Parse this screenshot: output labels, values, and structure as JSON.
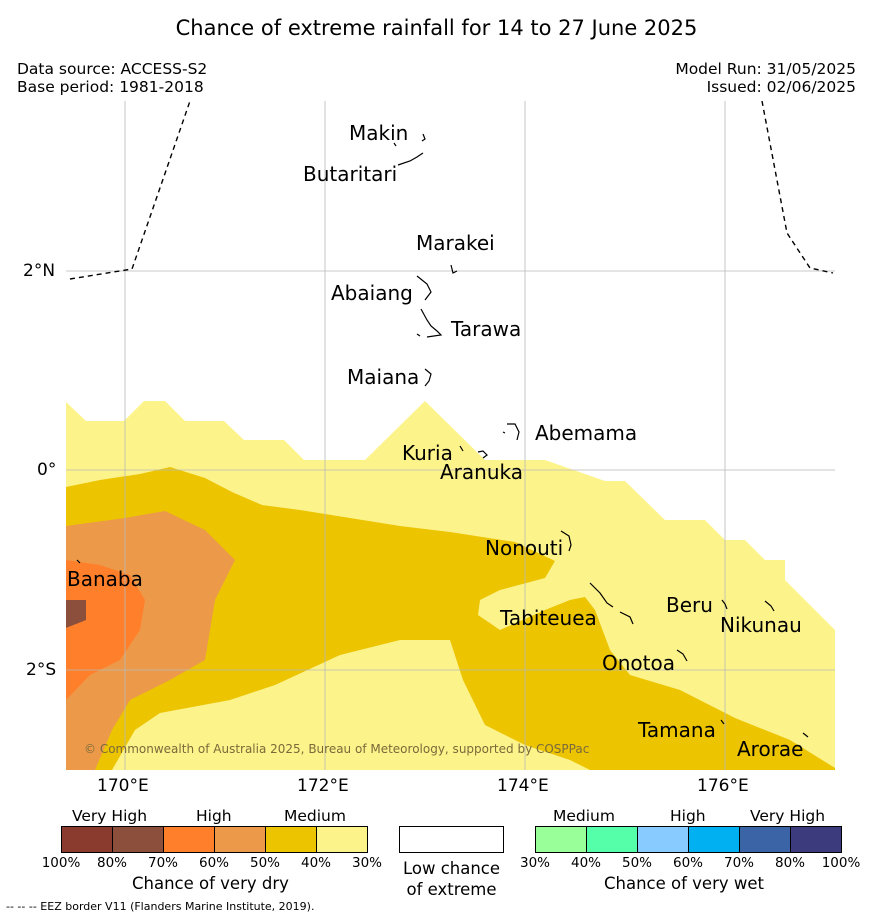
{
  "title": "Chance of extreme rainfall for 14 to 27 June 2025",
  "data_source": "Data source: ACCESS-S2",
  "base_period": "Base period: 1981-2018",
  "model_run": "Model Run: 31/05/2025",
  "issued": "Issued: 02/06/2025",
  "copyright": "© Commonwealth of Australia 2025, Bureau of Meteorology, supported by COSPPac",
  "footnote": "--  --  -- EEZ border V11 (Flanders Marine Institute, 2019).",
  "axes": {
    "lat_ticks": [
      "2°N",
      "0°",
      "2°S"
    ],
    "lon_ticks": [
      "170°E",
      "172°E",
      "174°E",
      "176°E"
    ]
  },
  "places": {
    "makin": "Makin",
    "butaritari": "Butaritari",
    "marakei": "Marakei",
    "abaiang": "Abaiang",
    "tarawa": "Tarawa",
    "maiana": "Maiana",
    "abemama": "Abemama",
    "kuria": "Kuria",
    "aranuka": "Aranuka",
    "nonouti": "Nonouti",
    "banaba": "Banaba",
    "tabiteuea": "Tabiteuea",
    "beru": "Beru",
    "nikunau": "Nikunau",
    "onotoa": "Onotoa",
    "tamana": "Tamana",
    "arorae": "Arorae"
  },
  "legend": {
    "dry": {
      "headings": [
        "Very High",
        "High",
        "Medium"
      ],
      "ticks": [
        "100%",
        "80%",
        "70%",
        "60%",
        "50%",
        "40%",
        "30%"
      ],
      "title": "Chance of very dry",
      "colors": [
        "#8b3a2e",
        "#8b4f3c",
        "#ff7f2a",
        "#ec9a4a",
        "#ecc400",
        "#fdf38b"
      ]
    },
    "neutral": {
      "title_line1": "Low chance",
      "title_line2": "of extreme",
      "color": "#ffffff"
    },
    "wet": {
      "headings": [
        "Medium",
        "High",
        "Very High"
      ],
      "ticks": [
        "30%",
        "40%",
        "50%",
        "60%",
        "70%",
        "80%",
        "100%"
      ],
      "title": "Chance of very wet",
      "colors": [
        "#99ff99",
        "#55ffaa",
        "#88ccff",
        "#00b0f0",
        "#3a64a6",
        "#3b3b7e"
      ]
    }
  },
  "colors": {
    "medium_dry_40": "#fdf38b",
    "medium_dry_50": "#ecc400",
    "high_dry_60": "#ec9a4a",
    "high_dry_70": "#ff7f2a",
    "very_high_dry_80": "#8b4f3c"
  }
}
